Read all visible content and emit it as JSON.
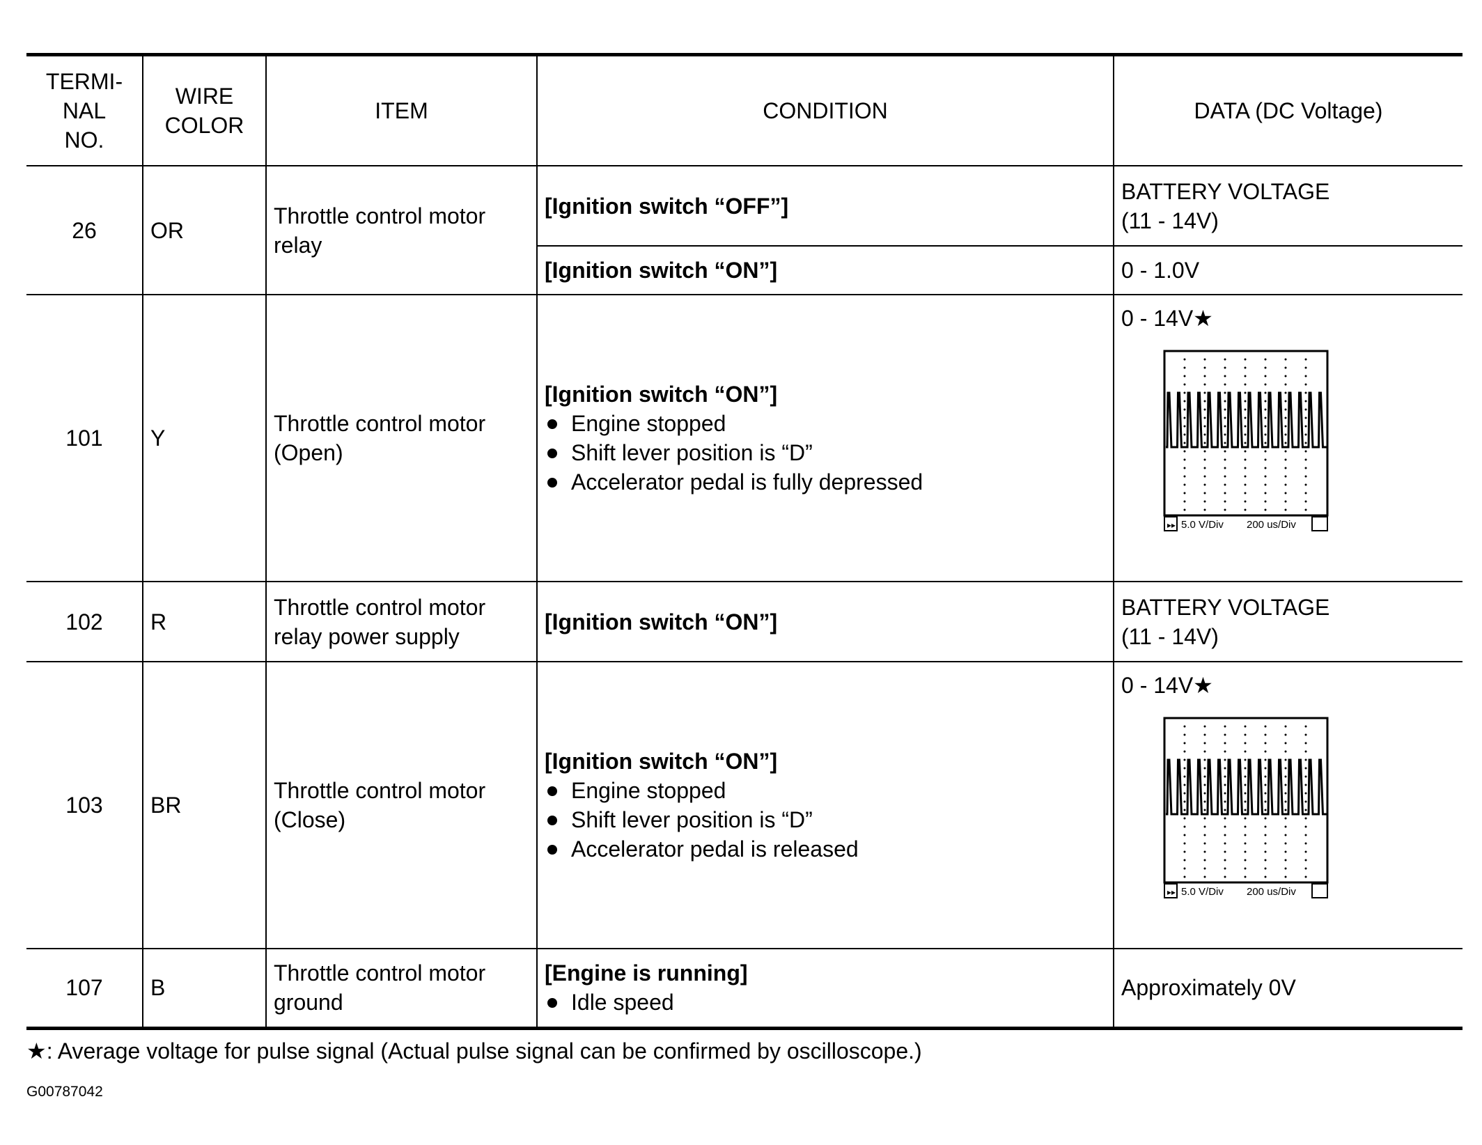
{
  "headers": [
    "TERMI-\nNAL\nNO.",
    "WIRE\nCOLOR",
    "ITEM",
    "CONDITION",
    "DATA (DC Voltage)"
  ],
  "rows": [
    {
      "terminal": "26",
      "wire": "OR",
      "item": "Throttle control motor relay",
      "conditions": [
        {
          "title": "[Ignition switch “OFF”]",
          "data": "BATTERY VOLTAGE\n(11 - 14V)"
        },
        {
          "title": "[Ignition switch “ON”]",
          "data": "0 - 1.0V"
        }
      ]
    },
    {
      "terminal": "101",
      "wire": "Y",
      "item": "Throttle control motor (Open)",
      "title": "[Ignition switch “ON”]",
      "bullets": [
        "Engine stopped",
        "Shift lever position is “D”",
        "Accelerator pedal is fully depressed"
      ],
      "data": "0 - 14V★",
      "scope": {
        "vdiv": "5.0 V/Div",
        "tdiv": "200 us/Div"
      }
    },
    {
      "terminal": "102",
      "wire": "R",
      "item": "Throttle control motor relay power supply",
      "title": "[Ignition switch “ON”]",
      "data": "BATTERY VOLTAGE\n(11 - 14V)"
    },
    {
      "terminal": "103",
      "wire": "BR",
      "item": "Throttle control motor (Close)",
      "title": "[Ignition switch “ON”]",
      "bullets": [
        "Engine stopped",
        "Shift lever position is “D”",
        "Accelerator pedal is released"
      ],
      "data": "0 - 14V★",
      "scope": {
        "vdiv": "5.0 V/Div",
        "tdiv": "200 us/Div"
      }
    },
    {
      "terminal": "107",
      "wire": "B",
      "item": "Throttle control motor ground",
      "title": "[Engine is running]",
      "bullets": [
        "Idle speed"
      ],
      "data": "Approximately 0V"
    }
  ],
  "footnote": "★: Average voltage for pulse signal (Actual pulse signal can be confirmed by oscilloscope.)",
  "figure_code": "G00787042"
}
